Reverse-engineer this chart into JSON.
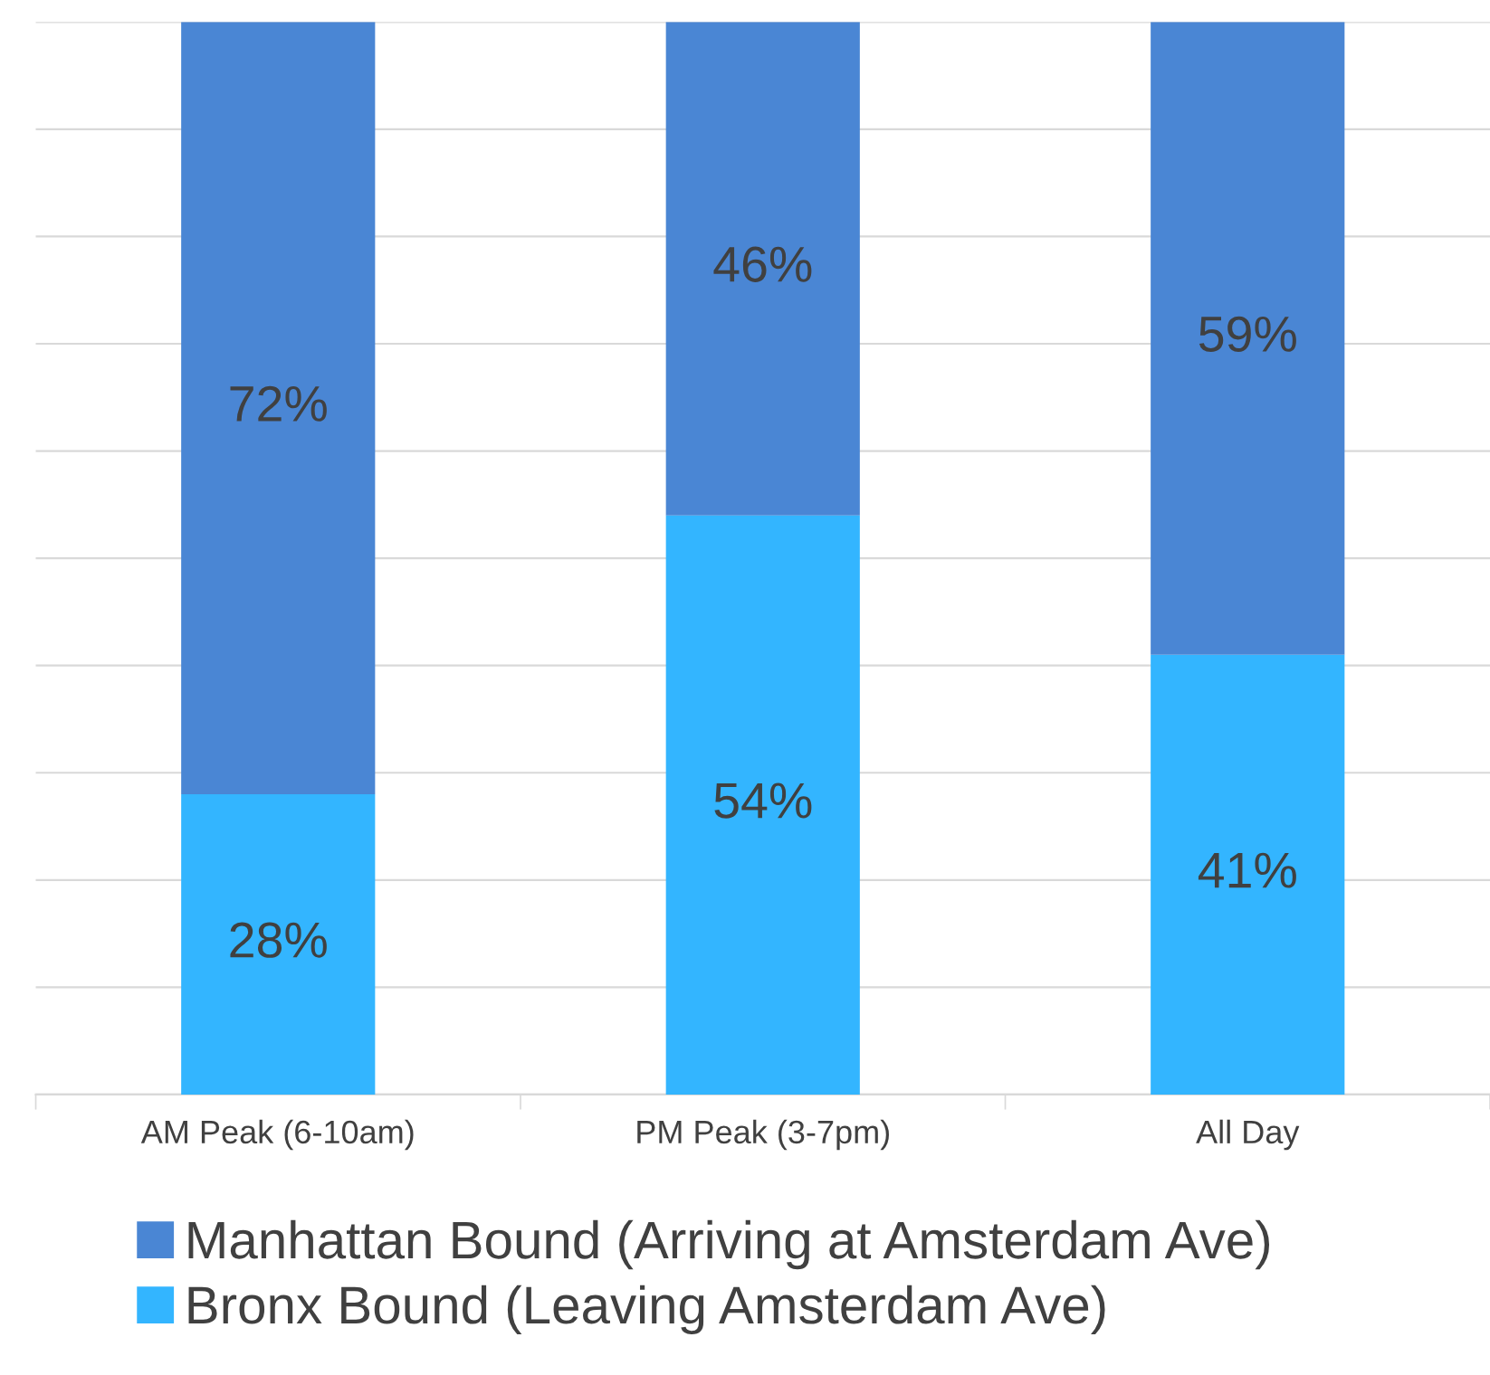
{
  "chart_data": {
    "type": "bar",
    "stacked": true,
    "categories": [
      "AM Peak (6-10am)",
      "PM Peak (3-7pm)",
      "All Day"
    ],
    "series": [
      {
        "name": "Bronx Bound (Leaving Amsterdam Ave)",
        "color": "#33b5ff",
        "values": [
          28,
          54,
          41
        ],
        "value_labels": [
          "28%",
          "54%",
          "41%"
        ]
      },
      {
        "name": "Manhattan Bound (Arriving at Amsterdam Ave)",
        "color": "#4a86d4",
        "values": [
          72,
          46,
          59
        ],
        "value_labels": [
          "72%",
          "46%",
          "59%"
        ]
      }
    ],
    "grid": "y",
    "legend": "bottom",
    "tick_labels": "x"
  }
}
